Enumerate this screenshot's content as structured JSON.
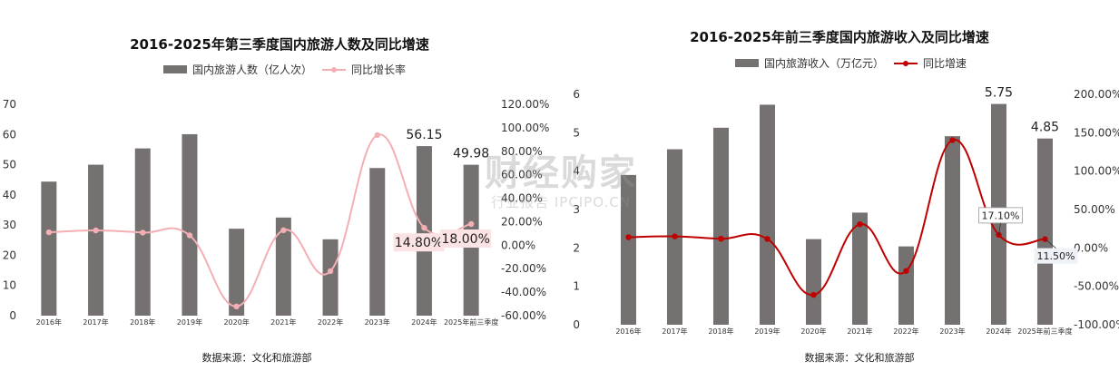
{
  "chart_data": [
    {
      "type": "bar",
      "title": "2016-2025年第三季度国内旅游人数及同比增速",
      "categories": [
        "2016年",
        "2017年",
        "2018年",
        "2019年",
        "2020年",
        "2021年",
        "2022年",
        "2023年",
        "2024年",
        "2025年前三季度"
      ],
      "series": [
        {
          "name": "国内旅游人数（亿人次）",
          "type": "bar",
          "axis": "left",
          "color": "#767171",
          "values": [
            44.4,
            50.0,
            55.4,
            60.1,
            28.8,
            32.5,
            25.3,
            48.9,
            56.15,
            49.98
          ]
        },
        {
          "name": "同比增长率",
          "type": "line",
          "axis": "right",
          "color": "#F4AFB4",
          "values": [
            11.0,
            12.6,
            10.8,
            8.4,
            -52.1,
            12.8,
            -22.1,
            93.8,
            14.8,
            18.0
          ]
        }
      ],
      "ylim_left": [
        0,
        70
      ],
      "yticks_left": [
        "0",
        "10",
        "20",
        "30",
        "40",
        "50",
        "60",
        "70"
      ],
      "ylim_right": [
        -60,
        120
      ],
      "yticks_right": [
        "-60.00%",
        "-40.00%",
        "-20.00%",
        "0.00%",
        "20.00%",
        "40.00%",
        "60.00%",
        "80.00%",
        "100.00%",
        "120.00%"
      ],
      "bar_labels": [
        {
          "index": 8,
          "text": "56.15"
        },
        {
          "index": 9,
          "text": "49.98"
        }
      ],
      "line_labels": [
        {
          "index": 8,
          "text": "14.80%"
        },
        {
          "index": 9,
          "text": "18.00%"
        }
      ],
      "source": "数据来源：文化和旅游部",
      "grid": false,
      "legend": "top-center"
    },
    {
      "type": "bar",
      "title": "2016-2025年前三季度国内旅游收入及同比增速",
      "categories": [
        "2016年",
        "2017年",
        "2018年",
        "2019年",
        "2020年",
        "2021年",
        "2022年",
        "2023年",
        "2024年",
        "2025年前三季度"
      ],
      "series": [
        {
          "name": "国内旅游收入（万亿元）",
          "type": "bar",
          "axis": "left",
          "color": "#767171",
          "values": [
            3.9,
            4.57,
            5.13,
            5.73,
            2.23,
            2.92,
            2.04,
            4.91,
            5.75,
            4.85
          ]
        },
        {
          "name": "同比增速",
          "type": "line",
          "axis": "right",
          "color": "#C00000",
          "values": [
            14.0,
            15.0,
            12.0,
            11.7,
            -61.1,
            30.9,
            -30.0,
            140.3,
            17.1,
            11.5
          ]
        }
      ],
      "ylim_left": [
        0,
        6
      ],
      "yticks_left": [
        "0",
        "1",
        "2",
        "3",
        "4",
        "5",
        "6"
      ],
      "ylim_right": [
        -100,
        200
      ],
      "yticks_right": [
        "-100.00%",
        "-50.00%",
        "0.00%",
        "50.00%",
        "100.00%",
        "150.00%",
        "200.00%"
      ],
      "bar_labels": [
        {
          "index": 8,
          "text": "5.75"
        },
        {
          "index": 9,
          "text": "4.85"
        }
      ],
      "line_labels": [
        {
          "index": 8,
          "text": "17.10%"
        },
        {
          "index": 9,
          "text": "11.50%"
        }
      ],
      "source": "数据来源：文化和旅游部",
      "grid": false,
      "legend": "top-center"
    }
  ],
  "watermark": {
    "line1": "财经购家",
    "line2": "行业报告 IPCIPO.CN"
  }
}
